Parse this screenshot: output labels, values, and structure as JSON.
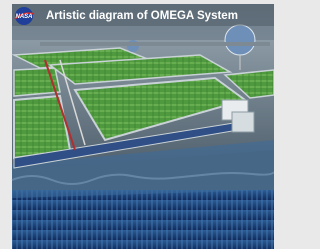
{
  "title": "Artistic diagram of OMEGA System",
  "logo": "NASA"
}
